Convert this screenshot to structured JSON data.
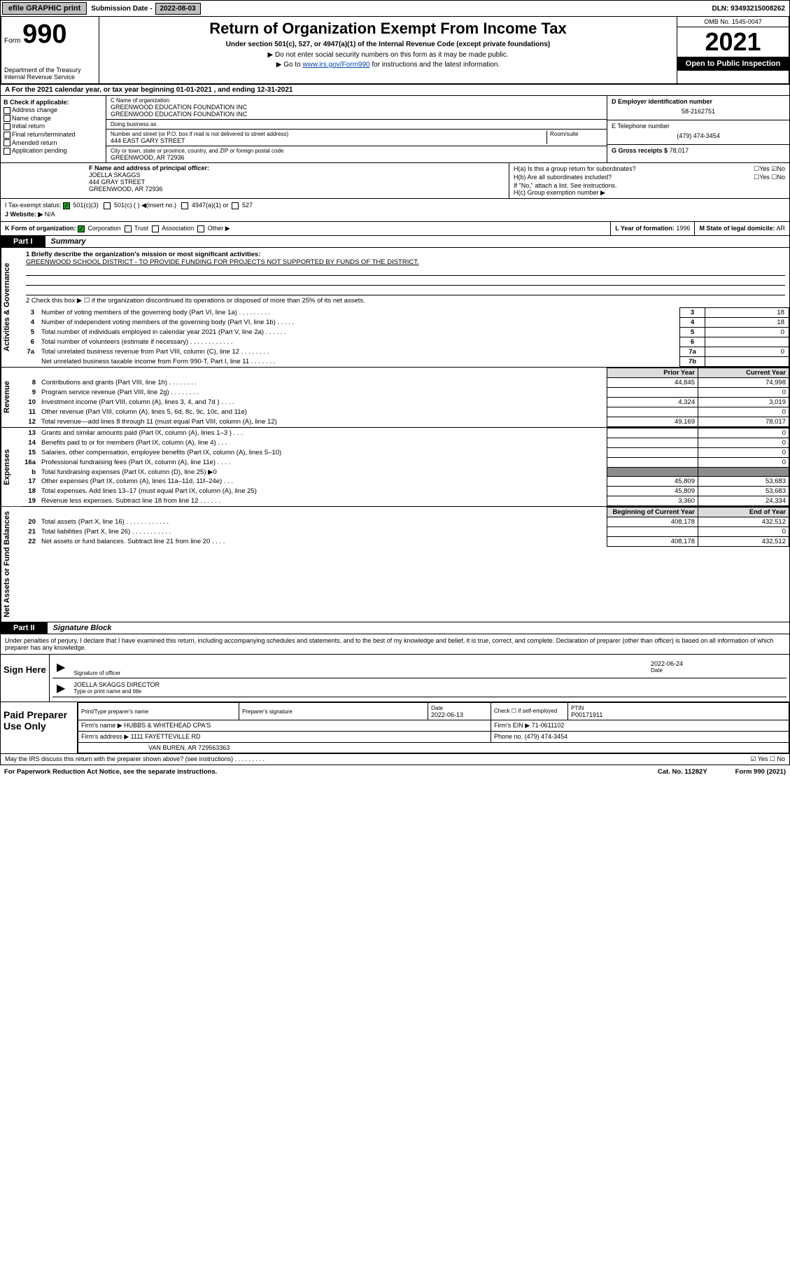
{
  "topbar": {
    "efile": "efile GRAPHIC print",
    "sub_label": "Submission Date - ",
    "sub_date": "2022-08-03",
    "dln": "DLN: 93493215008262"
  },
  "header": {
    "form_word": "Form",
    "form_num": "990",
    "dept": "Department of the Treasury\nInternal Revenue Service",
    "title": "Return of Organization Exempt From Income Tax",
    "subtitle": "Under section 501(c), 527, or 4947(a)(1) of the Internal Revenue Code (except private foundations)",
    "note1": "▶ Do not enter social security numbers on this form as it may be made public.",
    "note2_pre": "▶ Go to ",
    "note2_link": "www.irs.gov/Form990",
    "note2_post": " for instructions and the latest information.",
    "omb": "OMB No. 1545-0047",
    "year": "2021",
    "open": "Open to Public Inspection"
  },
  "row_a": "A For the 2021 calendar year, or tax year beginning 01-01-2021  , and ending 12-31-2021",
  "section_b": {
    "hdr": "B Check if applicable:",
    "items": [
      "Address change",
      "Name change",
      "Initial return",
      "Final return/terminated",
      "Amended return",
      "Application pending"
    ]
  },
  "section_c": {
    "name_lbl": "C Name of organization",
    "name1": "GREENWOOD EDUCATION FOUNDATION INC",
    "name2": "GREENWOOD EDUCATION FOUNDATION INC",
    "dba_lbl": "Doing business as",
    "addr_lbl": "Number and street (or P.O. box if mail is not delivered to street address)",
    "room_lbl": "Room/suite",
    "addr": "444 EAST GARY STREET",
    "city_lbl": "City or town, state or province, country, and ZIP or foreign postal code",
    "city": "GREENWOOD, AR  72936"
  },
  "section_de": {
    "d_lbl": "D Employer identification number",
    "d_val": "58-2162751",
    "e_lbl": "E Telephone number",
    "e_val": "(479) 474-3454",
    "g_lbl": "G Gross receipts $",
    "g_val": "78,017"
  },
  "section_f": {
    "lbl": "F Name and address of principal officer:",
    "name": "JOELLA SKAGGS",
    "addr1": "444 GRAY STREET",
    "addr2": "GREENWOOD, AR  72936"
  },
  "section_h": {
    "a": "H(a)  Is this a group return for subordinates?",
    "a_ans": "☐Yes ☑No",
    "b": "H(b)  Are all subordinates included?",
    "b_ans": "☐Yes ☐No",
    "b_note": "If \"No,\" attach a list. See instructions.",
    "c": "H(c)  Group exemption number ▶"
  },
  "section_i": {
    "lbl": "I   Tax-exempt status:",
    "opt1": "501(c)(3)",
    "opt2": "501(c) (  ) ◀(insert no.)",
    "opt3": "4947(a)(1) or",
    "opt4": "527"
  },
  "section_j": {
    "lbl": "J   Website: ▶",
    "val": "N/A"
  },
  "section_k": {
    "lbl": "K Form of organization:",
    "opts": [
      "Corporation",
      "Trust",
      "Association",
      "Other ▶"
    ]
  },
  "section_l": {
    "lbl": "L Year of formation:",
    "val": "1996"
  },
  "section_m": {
    "lbl": "M State of legal domicile:",
    "val": "AR"
  },
  "part1": {
    "lbl": "Part I",
    "title": "Summary"
  },
  "mission": {
    "q1": "1  Briefly describe the organization's mission or most significant activities:",
    "text": "GREENWOOD SCHOOL DISTRICT - TO PROVIDE FUNDING FOR PROJECTS NOT SUPPORTED BY FUNDS OF THE DISTRICT.",
    "q2": "2   Check this box ▶ ☐  if the organization discontinued its operations or disposed of more than 25% of its net assets."
  },
  "gov_rows": [
    {
      "n": "3",
      "d": "Number of voting members of the governing body (Part VI, line 1a)  .   .   .   .   .   .   .   .   .",
      "box": "3",
      "v": "18"
    },
    {
      "n": "4",
      "d": "Number of independent voting members of the governing body (Part VI, line 1b)   .   .   .   .   .",
      "box": "4",
      "v": "18"
    },
    {
      "n": "5",
      "d": "Total number of individuals employed in calendar year 2021 (Part V, line 2a)   .   .   .   .   .   .",
      "box": "5",
      "v": "0"
    },
    {
      "n": "6",
      "d": "Total number of volunteers (estimate if necessary)   .   .   .   .   .   .   .   .   .   .   .   .",
      "box": "6",
      "v": ""
    },
    {
      "n": "7a",
      "d": "Total unrelated business revenue from Part VIII, column (C), line 12   .   .   .   .   .   .   .   .",
      "box": "7a",
      "v": "0"
    },
    {
      "n": "",
      "d": "Net unrelated business taxable income from Form 990-T, Part I, line 11   .   .   .   .   .   .   .",
      "box": "7b",
      "v": ""
    }
  ],
  "fin_hdr": {
    "py": "Prior Year",
    "cy": "Current Year"
  },
  "rev_rows": [
    {
      "n": "8",
      "d": "Contributions and grants (Part VIII, line 1h)   .   .   .   .   .   .   .   .",
      "py": "44,845",
      "cy": "74,998"
    },
    {
      "n": "9",
      "d": "Program service revenue (Part VIII, line 2g)   .   .   .   .   .   .   .   .",
      "py": "",
      "cy": "0"
    },
    {
      "n": "10",
      "d": "Investment income (Part VIII, column (A), lines 3, 4, and 7d )   .   .   .   .",
      "py": "4,324",
      "cy": "3,019"
    },
    {
      "n": "11",
      "d": "Other revenue (Part VIII, column (A), lines 5, 6d, 8c, 9c, 10c, and 11e)",
      "py": "",
      "cy": "0"
    },
    {
      "n": "12",
      "d": "Total revenue—add lines 8 through 11 (must equal Part VIII, column (A), line 12)",
      "py": "49,169",
      "cy": "78,017"
    }
  ],
  "exp_rows": [
    {
      "n": "13",
      "d": "Grants and similar amounts paid (Part IX, column (A), lines 1–3 )   .   .   .",
      "py": "",
      "cy": "0"
    },
    {
      "n": "14",
      "d": "Benefits paid to or for members (Part IX, column (A), line 4)   .   .   .",
      "py": "",
      "cy": "0"
    },
    {
      "n": "15",
      "d": "Salaries, other compensation, employee benefits (Part IX, column (A), lines 5–10)",
      "py": "",
      "cy": "0"
    },
    {
      "n": "16a",
      "d": "Professional fundraising fees (Part IX, column (A), line 11e)   .   .   .   .",
      "py": "",
      "cy": "0"
    },
    {
      "n": "b",
      "d": "Total fundraising expenses (Part IX, column (D), line 25) ▶0",
      "py": "SHADE",
      "cy": "SHADE"
    },
    {
      "n": "17",
      "d": "Other expenses (Part IX, column (A), lines 11a–11d, 11f–24e)   .   .   .",
      "py": "45,809",
      "cy": "53,683"
    },
    {
      "n": "18",
      "d": "Total expenses. Add lines 13–17 (must equal Part IX, column (A), line 25)",
      "py": "45,809",
      "cy": "53,683"
    },
    {
      "n": "19",
      "d": "Revenue less expenses. Subtract line 18 from line 12   .   .   .   .   .   .",
      "py": "3,360",
      "cy": "24,334"
    }
  ],
  "na_hdr": {
    "py": "Beginning of Current Year",
    "cy": "End of Year"
  },
  "na_rows": [
    {
      "n": "20",
      "d": "Total assets (Part X, line 16)   .   .   .   .   .   .   .   .   .   .   .   .",
      "py": "408,178",
      "cy": "432,512"
    },
    {
      "n": "21",
      "d": "Total liabilities (Part X, line 26)   .   .   .   .   .   .   .   .   .   .   .",
      "py": "",
      "cy": "0"
    },
    {
      "n": "22",
      "d": "Net assets or fund balances. Subtract line 21 from line 20   .   .   .   .",
      "py": "408,178",
      "cy": "432,512"
    }
  ],
  "vlabels": {
    "gov": "Activities & Governance",
    "rev": "Revenue",
    "exp": "Expenses",
    "na": "Net Assets or Fund Balances"
  },
  "part2": {
    "lbl": "Part II",
    "title": "Signature Block"
  },
  "sig_intro": "Under penalties of perjury, I declare that I have examined this return, including accompanying schedules and statements, and to the best of my knowledge and belief, it is true, correct, and complete. Declaration of preparer (other than officer) is based on all information of which preparer has any knowledge.",
  "sign": {
    "lbl": "Sign Here",
    "sig_of_officer": "Signature of officer",
    "date_lbl": "Date",
    "date": "2022-06-24",
    "name": "JOELLA SKAGGS  DIRECTOR",
    "name_lbl": "Type or print name and title"
  },
  "prep": {
    "lbl": "Paid Preparer Use Only",
    "h1": "Print/Type preparer's name",
    "h2": "Preparer's signature",
    "h3": "Date",
    "h3v": "2022-06-13",
    "h4": "Check ☐ if self-employed",
    "h5": "PTIN",
    "h5v": "P00171911",
    "firm_lbl": "Firm's name    ▶",
    "firm": "HUBBS & WHITEHEAD CPA'S",
    "ein_lbl": "Firm's EIN ▶",
    "ein": "71-0611102",
    "addr_lbl": "Firm's address ▶",
    "addr1": "1111 FAYETTEVILLE RD",
    "addr2": "VAN BUREN, AR  729563363",
    "phone_lbl": "Phone no.",
    "phone": "(479) 474-3454"
  },
  "footer": {
    "may": "May the IRS discuss this return with the preparer shown above? (see instructions)   .   .   .   .   .   .   .   .   .",
    "yn": "☑ Yes  ☐ No"
  },
  "paperwork": {
    "l": "For Paperwork Reduction Act Notice, see the separate instructions.",
    "c": "Cat. No. 11282Y",
    "r": "Form 990 (2021)"
  },
  "colors": {
    "topbtn": "#bfbfbf",
    "black": "#000000",
    "green": "#19a019",
    "shade": "#8c8c8c",
    "hdr_grey": "#dcdcdc"
  }
}
